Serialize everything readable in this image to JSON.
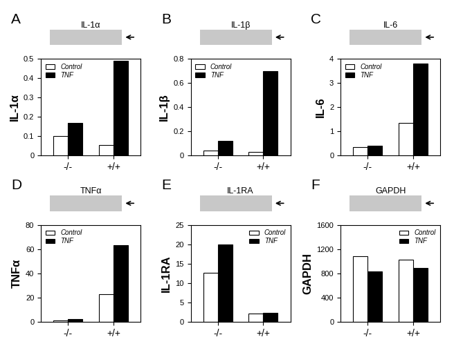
{
  "chart_data": [
    {
      "type": "bar",
      "annotation": "A",
      "title": "IL-1α",
      "y_label": "IL-1α",
      "categories": [
        "-/-",
        "+/+"
      ],
      "series": [
        {
          "name": "Control",
          "color": "#ffffff",
          "values": [
            0.1,
            0.055
          ]
        },
        {
          "name": "TNF",
          "color": "#000000",
          "values": [
            0.17,
            0.49
          ]
        }
      ],
      "ylim": [
        0,
        0.5
      ],
      "yticks": [
        0,
        0.1,
        0.2,
        0.3,
        0.4,
        0.5
      ],
      "legend": "upper left"
    },
    {
      "type": "bar",
      "annotation": "B",
      "title": "IL-1β",
      "y_label": "IL-1β",
      "categories": [
        "-/-",
        "+/+"
      ],
      "series": [
        {
          "name": "Control",
          "color": "#ffffff",
          "values": [
            0.04,
            0.03
          ]
        },
        {
          "name": "TNF",
          "color": "#000000",
          "values": [
            0.12,
            0.7
          ]
        }
      ],
      "ylim": [
        0,
        0.8
      ],
      "yticks": [
        0,
        0.2,
        0.4,
        0.6,
        0.8
      ],
      "legend": "upper left"
    },
    {
      "type": "bar",
      "annotation": "C",
      "title": "IL-6",
      "y_label": "IL-6",
      "categories": [
        "-/-",
        "+/+"
      ],
      "series": [
        {
          "name": "Control",
          "color": "#ffffff",
          "values": [
            0.35,
            1.35
          ]
        },
        {
          "name": "TNF",
          "color": "#000000",
          "values": [
            0.4,
            3.8
          ]
        }
      ],
      "ylim": [
        0,
        4
      ],
      "yticks": [
        0,
        1,
        2,
        3,
        4
      ],
      "legend": "upper left"
    },
    {
      "type": "bar",
      "annotation": "D",
      "title": "TNFα",
      "y_label": "TNFα",
      "categories": [
        "-/-",
        "+/+"
      ],
      "series": [
        {
          "name": "Control",
          "color": "#ffffff",
          "values": [
            1,
            23
          ]
        },
        {
          "name": "TNF",
          "color": "#000000",
          "values": [
            2,
            63
          ]
        }
      ],
      "ylim": [
        0,
        80
      ],
      "yticks": [
        0,
        20,
        40,
        60,
        80
      ],
      "legend": "upper left"
    },
    {
      "type": "bar",
      "annotation": "E",
      "title": "IL-1RA",
      "y_label": "IL-1RA",
      "categories": [
        "-/-",
        "+/+"
      ],
      "series": [
        {
          "name": "Control",
          "color": "#ffffff",
          "values": [
            12.7,
            2.1
          ]
        },
        {
          "name": "TNF",
          "color": "#000000",
          "values": [
            20,
            2.3
          ]
        }
      ],
      "ylim": [
        0,
        25
      ],
      "yticks": [
        0,
        5,
        10,
        15,
        20,
        25
      ],
      "legend": "upper right"
    },
    {
      "type": "bar",
      "annotation": "F",
      "title": "GAPDH",
      "y_label": "GAPDH",
      "categories": [
        "-/-",
        "+/+"
      ],
      "series": [
        {
          "name": "Control",
          "color": "#ffffff",
          "values": [
            1080,
            1030
          ]
        },
        {
          "name": "TNF",
          "color": "#000000",
          "values": [
            830,
            890
          ]
        }
      ],
      "ylim": [
        0,
        1600
      ],
      "yticks": [
        0,
        400,
        800,
        1200,
        1600
      ],
      "legend": "upper right"
    }
  ]
}
